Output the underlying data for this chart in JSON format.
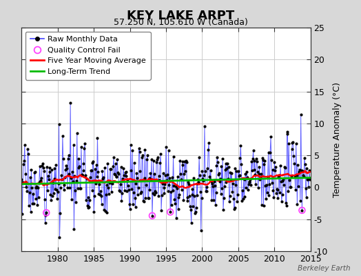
{
  "title": "KEY LAKE ARPT",
  "subtitle": "57.250 N, 105.610 W (Canada)",
  "ylabel": "Temperature Anomaly (°C)",
  "xlim": [
    1975,
    2015
  ],
  "ylim": [
    -10,
    25
  ],
  "yticks": [
    -10,
    -5,
    0,
    5,
    10,
    15,
    20,
    25
  ],
  "xticks": [
    1980,
    1985,
    1990,
    1995,
    2000,
    2005,
    2010,
    2015
  ],
  "background_color": "#d8d8d8",
  "plot_bg_color": "#ffffff",
  "grid_color": "#cccccc",
  "raw_line_color": "#4444ff",
  "raw_marker_color": "#000000",
  "moving_avg_color": "#ff0000",
  "trend_color": "#00bb00",
  "qc_fail_color": "#ff44ff",
  "watermark": "Berkeley Earth",
  "seed": 17,
  "n_years": 40,
  "start_year": 1975
}
